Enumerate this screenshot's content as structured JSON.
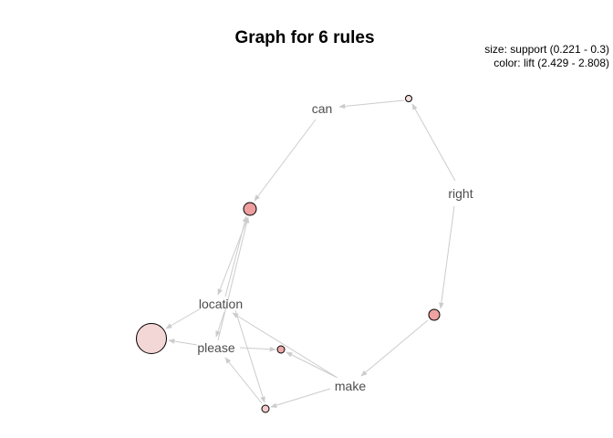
{
  "graph": {
    "title": "Graph for 6 rules",
    "legend": {
      "size_line": "size: support (0.221 - 0.3)",
      "color_line": "color: lift (2.429 - 2.808)"
    },
    "items": [
      {
        "id": "can",
        "label": "can"
      },
      {
        "id": "right",
        "label": "right"
      },
      {
        "id": "location",
        "label": "location"
      },
      {
        "id": "please",
        "label": "please"
      },
      {
        "id": "make",
        "label": "make"
      }
    ],
    "colors": {
      "edge": "#cccccc",
      "lift_low": "#f3d6d6",
      "lift_high": "#ee9e9e"
    }
  }
}
